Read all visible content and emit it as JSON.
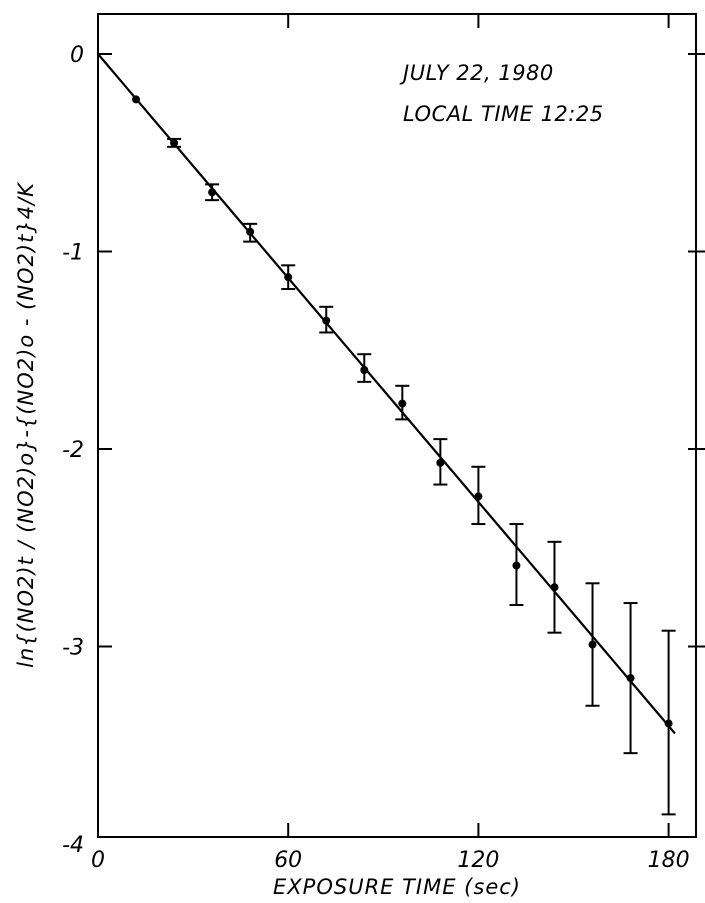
{
  "chart_data": {
    "type": "scatter",
    "title": "",
    "annotations": [
      "JULY 22, 1980",
      "LOCAL TIME 12:25"
    ],
    "xlabel": "EXPOSURE TIME (sec)",
    "ylabel": "ln{(NO2)t / (NO2)o}-{(NO2)o - (NO2)t}4/K",
    "xlim": [
      0,
      190
    ],
    "ylim": [
      -4,
      0.2
    ],
    "x_ticks": [
      0,
      60,
      120,
      180
    ],
    "x_tick_labels": [
      "0",
      "60",
      "120",
      "180"
    ],
    "y_ticks": [
      0,
      -1,
      -2,
      -3,
      -4
    ],
    "y_tick_labels": [
      "0",
      "-1",
      "-2",
      "-3",
      "-4"
    ],
    "grid": false,
    "series": [
      {
        "type": "scatter",
        "x": [
          12,
          24,
          36,
          48,
          60,
          72,
          84,
          96,
          108,
          120,
          132,
          144,
          156,
          168,
          180
        ],
        "y": [
          -0.23,
          -0.45,
          -0.7,
          -0.9,
          -1.13,
          -1.35,
          -1.6,
          -1.77,
          -2.07,
          -2.24,
          -2.59,
          -2.7,
          -2.99,
          -3.16,
          -3.39
        ],
        "error_low": [
          -0.23,
          -0.47,
          -0.74,
          -0.95,
          -1.19,
          -1.41,
          -1.66,
          -1.85,
          -2.18,
          -2.38,
          -2.79,
          -2.93,
          -3.3,
          -3.54,
          -3.85
        ],
        "error_high": [
          -0.23,
          -0.43,
          -0.66,
          -0.86,
          -1.07,
          -1.28,
          -1.52,
          -1.68,
          -1.95,
          -2.09,
          -2.38,
          -2.47,
          -2.68,
          -2.78,
          -2.92
        ]
      },
      {
        "type": "line",
        "x": [
          0,
          182
        ],
        "y": [
          0,
          -3.44
        ]
      }
    ]
  }
}
